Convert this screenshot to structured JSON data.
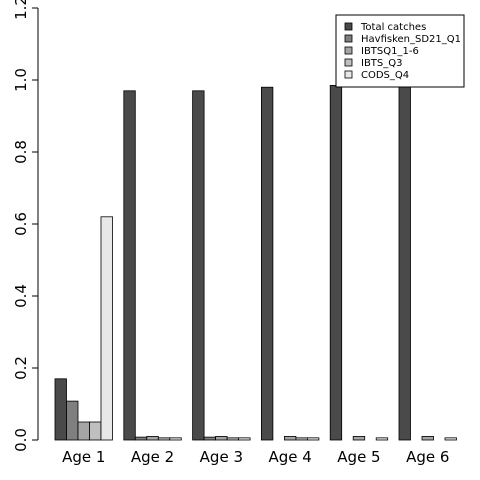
{
  "chart_data": {
    "type": "bar",
    "categories": [
      "Age 1",
      "Age 2",
      "Age 3",
      "Age 4",
      "Age 5",
      "Age 6"
    ],
    "series": [
      {
        "name": "Total catches",
        "color": "#4a4a4a",
        "values": [
          0.17,
          0.97,
          0.97,
          0.98,
          0.985,
          0.985
        ]
      },
      {
        "name": "Havfisken_SD21_Q1",
        "color": "#7f7f7f",
        "values": [
          0.108,
          0.008,
          0.008,
          0.0,
          0.0,
          0.0
        ]
      },
      {
        "name": "IBTSQ1_1-6",
        "color": "#a5a5a5",
        "values": [
          0.05,
          0.01,
          0.01,
          0.01,
          0.01,
          0.01
        ]
      },
      {
        "name": "IBTS_Q3",
        "color": "#bfbfbf",
        "values": [
          0.05,
          0.006,
          0.006,
          0.006,
          0.0,
          0.0
        ]
      },
      {
        "name": "CODS_Q4",
        "color": "#e8e8e8",
        "values": [
          0.62,
          0.006,
          0.006,
          0.006,
          0.006,
          0.006
        ]
      }
    ],
    "yticks": [
      "0.0",
      "0.2",
      "0.4",
      "0.6",
      "0.8",
      "1.0",
      "1.2"
    ],
    "ylim": [
      0,
      1.2
    ],
    "legend_position": "top-right",
    "grid": false
  }
}
